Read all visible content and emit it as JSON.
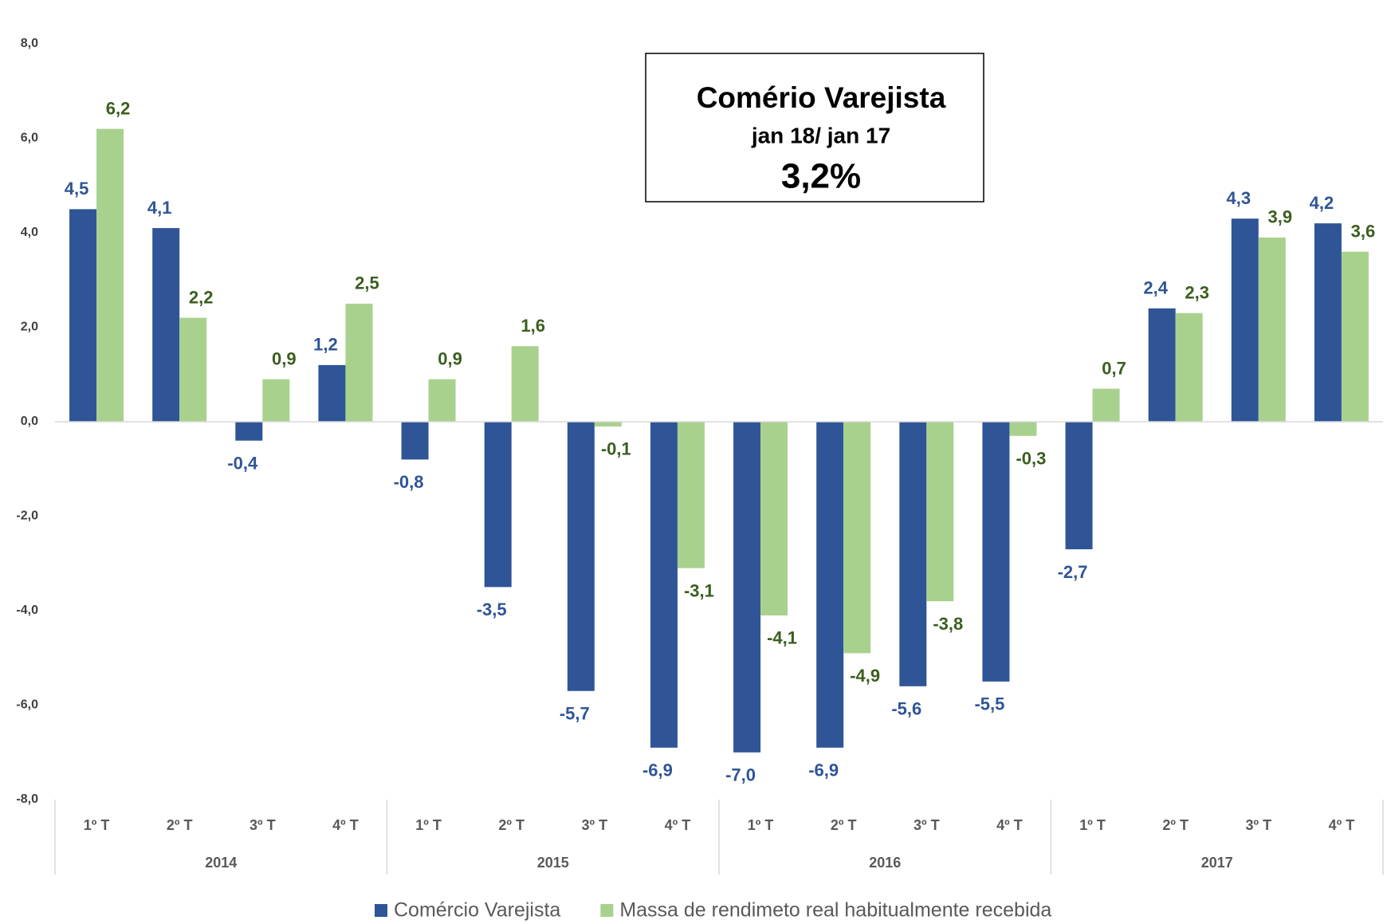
{
  "chart_data": {
    "type": "bar",
    "annotation": {
      "title": "Comério Varejista",
      "subtitle": "jan 18/ jan 17",
      "value": "3,2%"
    },
    "categories": [
      "1º T",
      "2º T",
      "3º T",
      "4º T",
      "1º T",
      "2º T",
      "3º T",
      "4º T",
      "1º T",
      "2º T",
      "3º T",
      "4º T",
      "1º T",
      "2º T",
      "3º T",
      "4º T"
    ],
    "category_groups": [
      "2014",
      "2015",
      "2016",
      "2017"
    ],
    "series": [
      {
        "name": "Comércio Varejista",
        "color": "#2f5597",
        "label_color": "#2f5597",
        "values": [
          4.5,
          4.1,
          -0.4,
          1.2,
          -0.8,
          -3.5,
          -5.7,
          -6.9,
          -7.0,
          -6.9,
          -5.6,
          -5.5,
          -2.7,
          2.4,
          4.3,
          4.2
        ],
        "value_labels": [
          "4,5",
          "4,1",
          "-0,4",
          "1,2",
          "-0,8",
          "-3,5",
          "-5,7",
          "-6,9",
          "-7,0",
          "-6,9",
          "-5,6",
          "-5,5",
          "-2,7",
          "2,4",
          "4,3",
          "4,2"
        ]
      },
      {
        "name": "Massa de rendimeto real habitualmente recebida",
        "color": "#a9d18e",
        "label_color": "#3b5e1f",
        "values": [
          6.2,
          2.2,
          0.9,
          2.5,
          0.9,
          1.6,
          -0.1,
          -3.1,
          -4.1,
          -4.9,
          -3.8,
          -0.3,
          0.7,
          2.3,
          3.9,
          3.6
        ],
        "value_labels": [
          "6,2",
          "2,2",
          "0,9",
          "2,5",
          "0,9",
          "1,6",
          "-0,1",
          "-3,1",
          "-4,1",
          "-4,9",
          "-3,8",
          "-0,3",
          "0,7",
          "2,3",
          "3,9",
          "3,6"
        ]
      }
    ],
    "ylim": [
      -8,
      8
    ],
    "yticks": [
      {
        "value": -8,
        "label": "-8,0"
      },
      {
        "value": -6,
        "label": "-6,0"
      },
      {
        "value": -4,
        "label": "-4,0"
      },
      {
        "value": -2,
        "label": "-2,0"
      },
      {
        "value": 0,
        "label": "0,0"
      },
      {
        "value": 2,
        "label": "2,0"
      },
      {
        "value": 4,
        "label": "4,0"
      },
      {
        "value": 6,
        "label": "6,0"
      },
      {
        "value": 8,
        "label": "8,0"
      }
    ],
    "grid": false,
    "legend": "bottom"
  }
}
